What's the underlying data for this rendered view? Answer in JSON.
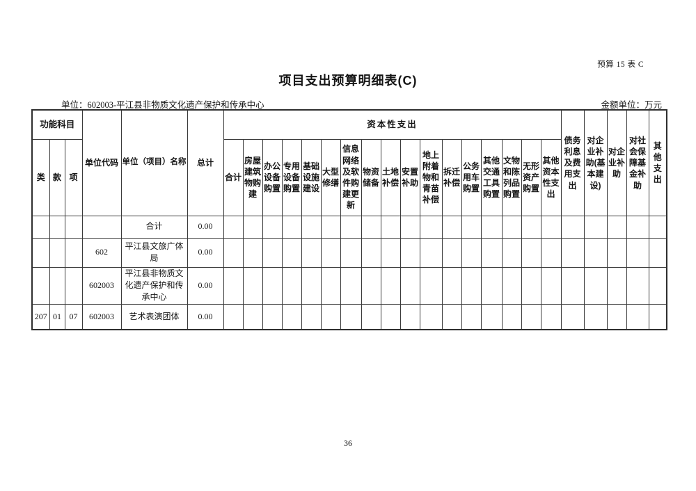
{
  "page": {
    "form_code": "预算 15 表 C",
    "title": "项目支出预算明细表(C)",
    "unit_line": "单位：602003-平江县非物质文化遗产保护和传承中心",
    "amount_unit": "金额单位：万元",
    "page_number": "36"
  },
  "table": {
    "group_headers": {
      "functional_subject": "功能科目",
      "capital_expenditure": "资本性支出"
    },
    "left_headers": {
      "lei": "类",
      "kuan": "款",
      "xiang": "项",
      "unit_code": "单位代码",
      "unit_name": "单位（项目）名称",
      "total": "总计"
    },
    "capital_sub_headers": [
      "合计",
      "房屋建筑物购建",
      "办公设备购置",
      "专用设备购置",
      "基础设施建设",
      "大型修缮",
      "信息网络及软件购建更新",
      "物资储备",
      "土地补偿",
      "安置补助",
      "地上附着物和青苗补偿",
      "拆迁补偿",
      "公务用车购置",
      "其他交通工具购置",
      "文物和陈列品购置",
      "无形资产购置",
      "其他资本性支出"
    ],
    "right_headers": [
      "债务利息及费用支出",
      "对企业补助(基本建设)",
      "对企业补助",
      "对社会保障基金补助",
      "其他支出"
    ],
    "rows": [
      {
        "cols": [
          "",
          "",
          "",
          "",
          "合计",
          "0.00"
        ]
      },
      {
        "cols": [
          "",
          "",
          "",
          "602",
          "平江县文旅广体局",
          "0.00"
        ]
      },
      {
        "cols": [
          "",
          "",
          "",
          "602003",
          "平江县非物质文化遗产保护和传承中心",
          "0.00"
        ]
      },
      {
        "cols": [
          "207",
          "01",
          "07",
          "602003",
          "艺术表演团体",
          "0.00"
        ]
      }
    ]
  }
}
